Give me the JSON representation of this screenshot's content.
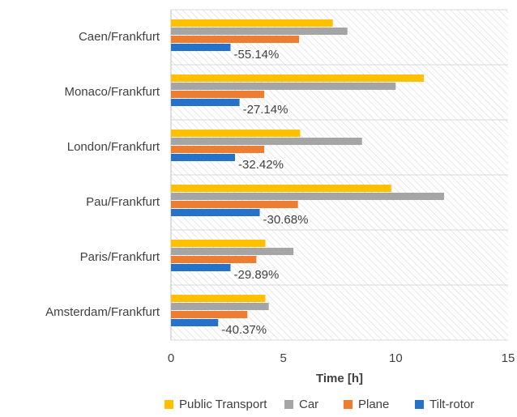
{
  "chart_data": {
    "type": "hbar",
    "xlabel": "Time [h]",
    "categories": [
      "Caen/Frankfurt",
      "Monaco/Frankfurt",
      "London/Frankfurt",
      "Pau/Frankfurt",
      "Paris/Frankfurt",
      "Amsterdam/Frankfurt"
    ],
    "series": [
      {
        "name": "Public Transport",
        "color": "#ffc000",
        "values": [
          7.2,
          11.25,
          5.75,
          9.8,
          4.2,
          4.2
        ]
      },
      {
        "name": "Car",
        "color": "#a5a5a5",
        "values": [
          7.85,
          10.0,
          8.5,
          12.15,
          5.45,
          4.35
        ]
      },
      {
        "name": "Plane",
        "color": "#ed7d31",
        "values": [
          5.7,
          4.15,
          4.15,
          5.65,
          3.8,
          3.4
        ]
      },
      {
        "name": "Tilt-rotor",
        "color": "#2672c8",
        "values": [
          2.65,
          3.05,
          2.85,
          3.95,
          2.65,
          2.1
        ]
      }
    ],
    "annotations": [
      "-55.14%",
      "-27.14%",
      "-32.42%",
      "-30.68%",
      "-29.89%",
      "-40.37%"
    ],
    "xlim": [
      0,
      15
    ],
    "xticks": [
      0,
      5,
      10,
      15
    ],
    "legend": "bottom"
  }
}
